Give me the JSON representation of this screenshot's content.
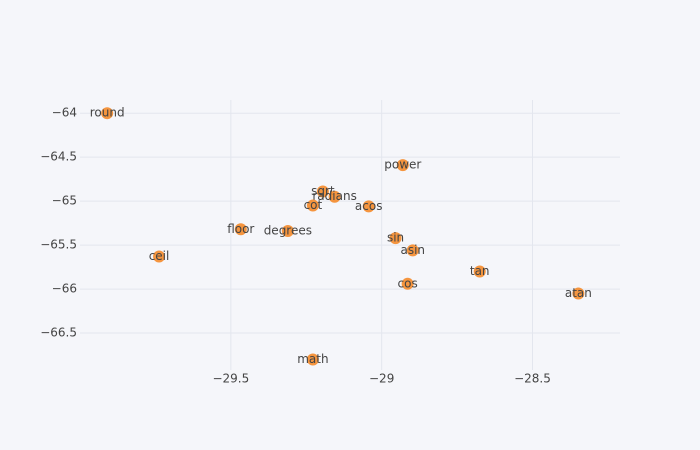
{
  "chart_data": {
    "type": "scatter",
    "x": [
      -29.91,
      -28.93,
      -29.195,
      -29.156,
      -29.228,
      -29.043,
      -29.467,
      -29.311,
      -28.954,
      -28.897,
      -29.738,
      -28.675,
      -28.914,
      -28.348,
      -29.228
    ],
    "values": [
      -64.0,
      -64.59,
      -64.89,
      -64.95,
      -65.05,
      -65.06,
      -65.32,
      -65.34,
      -65.42,
      -65.56,
      -65.63,
      -65.8,
      -65.94,
      -66.05,
      -66.8
    ],
    "labels": [
      "round",
      "power",
      "sqrt",
      "radians",
      "cot",
      "acos",
      "floor",
      "degrees",
      "sin",
      "asin",
      "ceil",
      "tan",
      "cos",
      "atan",
      "math"
    ],
    "color": "#f58b2a",
    "xlim": [
      -30.0,
      -28.21
    ],
    "ylim": [
      -66.92,
      -63.85
    ],
    "xticks": [
      {
        "value": -29.5,
        "label": "−29.5"
      },
      {
        "value": -29,
        "label": "−29"
      },
      {
        "value": -28.5,
        "label": "−28.5"
      }
    ],
    "yticks": [
      {
        "value": -64,
        "label": "−64"
      },
      {
        "value": -64.5,
        "label": "−64.5"
      },
      {
        "value": -65,
        "label": "−65"
      },
      {
        "value": -65.5,
        "label": "−65.5"
      },
      {
        "value": -66,
        "label": "−66"
      },
      {
        "value": -66.5,
        "label": "−66.5"
      }
    ],
    "grid": true
  }
}
